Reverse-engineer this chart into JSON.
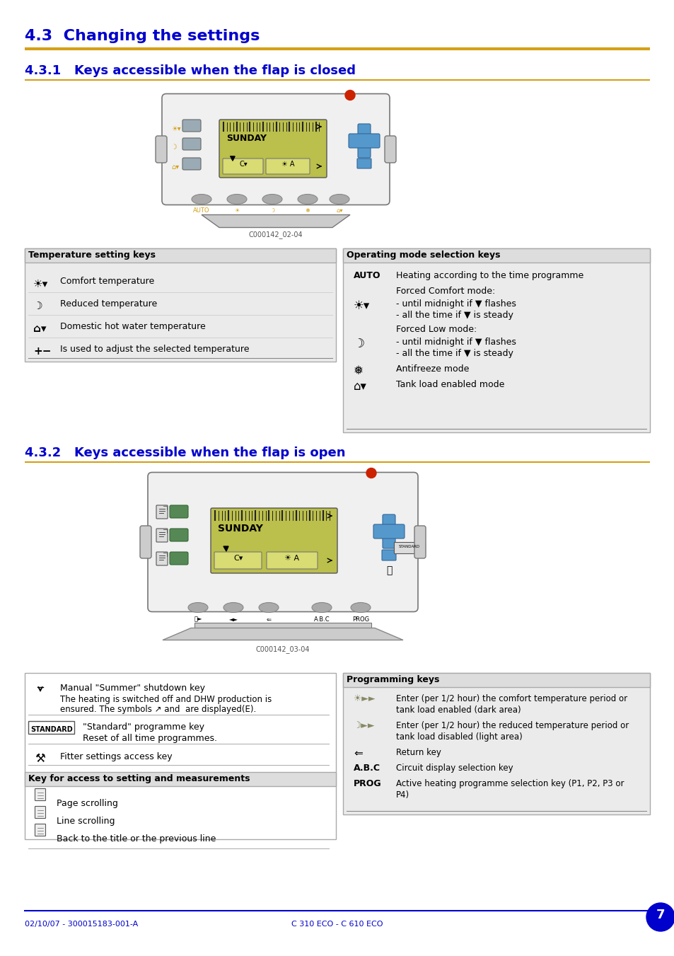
{
  "title_main": "4.3  Changing the settings",
  "title_main_color": "#0000CC",
  "section1_title": "4.3.1   Keys accessible when the flap is closed",
  "section2_title": "4.3.2   Keys accessible when the flap is open",
  "section_title_color": "#0000CC",
  "gold_color": "#D4A017",
  "blue_color": "#0000CC",
  "bg_color": "#FFFFFF",
  "footer_left": "02/10/07 - 300015183-001-A",
  "footer_center": "C 310 ECO - C 610 ECO",
  "footer_page": "7",
  "temp_table_header": "Temperature setting keys",
  "op_table_header": "Operating mode selection keys",
  "prog_table_header": "Programming keys",
  "key_access_header": "Key for access to setting and measurements",
  "image1_caption": "C000142_02-04",
  "image2_caption": "C000142_03-04"
}
